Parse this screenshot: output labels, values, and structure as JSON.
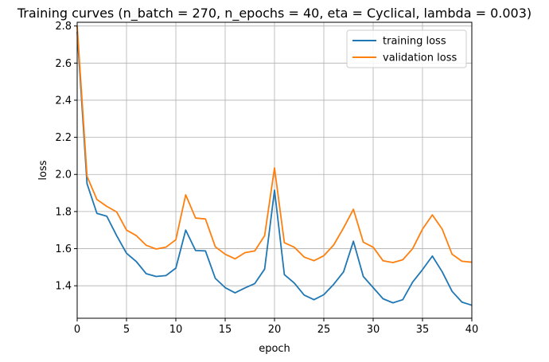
{
  "chart_data": {
    "type": "line",
    "title": "Training curves (n_batch = 270, n_epochs = 40, eta = Cyclical, lambda = 0.003)",
    "xlabel": "epoch",
    "ylabel": "loss",
    "xlim": [
      0,
      40
    ],
    "ylim": [
      1.225,
      2.82
    ],
    "x_ticks": [
      0,
      5,
      10,
      15,
      20,
      25,
      30,
      35,
      40
    ],
    "y_ticks": [
      1.4,
      1.6,
      1.8,
      2.0,
      2.2,
      2.4,
      2.6,
      2.8
    ],
    "x_tick_labels": [
      "0",
      "5",
      "10",
      "15",
      "20",
      "25",
      "30",
      "35",
      "40"
    ],
    "y_tick_labels": [
      "1.4",
      "1.6",
      "1.8",
      "2.0",
      "2.2",
      "2.4",
      "2.6",
      "2.8"
    ],
    "grid": true,
    "legend_position": "top-right",
    "x": [
      0,
      1,
      2,
      3,
      4,
      5,
      6,
      7,
      8,
      9,
      10,
      11,
      12,
      13,
      14,
      15,
      16,
      17,
      18,
      19,
      20,
      21,
      22,
      23,
      24,
      25,
      26,
      27,
      28,
      29,
      30,
      31,
      32,
      33,
      34,
      35,
      36,
      37,
      38,
      39,
      40
    ],
    "series": [
      {
        "name": "training loss",
        "color": "#1f77b4",
        "values": [
          2.77,
          1.95,
          1.79,
          1.775,
          1.67,
          1.575,
          1.53,
          1.465,
          1.45,
          1.455,
          1.495,
          1.7,
          1.59,
          1.588,
          1.44,
          1.39,
          1.362,
          1.388,
          1.412,
          1.49,
          1.915,
          1.46,
          1.415,
          1.35,
          1.325,
          1.352,
          1.408,
          1.475,
          1.64,
          1.45,
          1.39,
          1.33,
          1.308,
          1.325,
          1.42,
          1.487,
          1.56,
          1.475,
          1.37,
          1.312,
          1.295
        ]
      },
      {
        "name": "validation loss",
        "color": "#ff7f0e",
        "values": [
          2.8,
          1.99,
          1.865,
          1.828,
          1.798,
          1.7,
          1.67,
          1.618,
          1.598,
          1.608,
          1.648,
          1.89,
          1.765,
          1.76,
          1.61,
          1.57,
          1.545,
          1.578,
          1.588,
          1.67,
          2.035,
          1.632,
          1.608,
          1.555,
          1.535,
          1.562,
          1.62,
          1.712,
          1.812,
          1.635,
          1.608,
          1.535,
          1.525,
          1.54,
          1.6,
          1.705,
          1.782,
          1.705,
          1.57,
          1.532,
          1.527
        ]
      }
    ]
  }
}
